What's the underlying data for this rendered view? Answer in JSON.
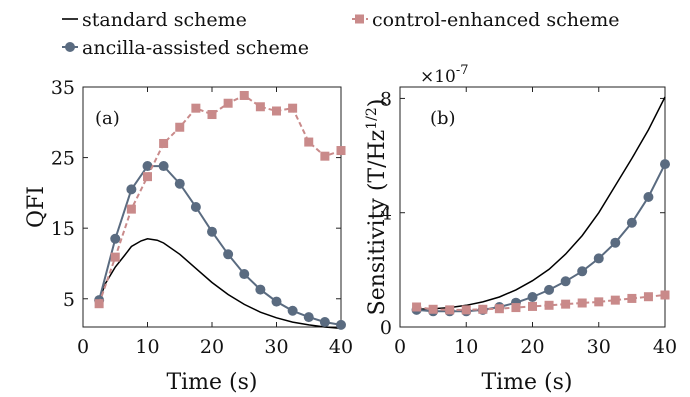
{
  "legend": {
    "standard": "standard scheme",
    "control": "control-enhanced scheme",
    "ancilla": "ancilla-assisted scheme"
  },
  "colors": {
    "standard": "#000000",
    "ancilla": "#5a6b80",
    "control": "#c98a8a"
  },
  "chart_data": [
    {
      "type": "line",
      "panel_label": "(a)",
      "xlabel": "Time (s)",
      "ylabel": "QFI",
      "xlim": [
        0,
        40
      ],
      "ylim": [
        1,
        35
      ],
      "xticks": [
        0,
        10,
        20,
        30,
        40
      ],
      "yticks": [
        5,
        15,
        25,
        35
      ],
      "grid": false,
      "series": [
        {
          "name": "standard scheme",
          "style": "solid",
          "marker": "none",
          "x": [
            2.5,
            3.5,
            5,
            6.5,
            7.5,
            9,
            10,
            11.5,
            12.5,
            15,
            17.5,
            20,
            22.5,
            25,
            27.5,
            30,
            32.5,
            35,
            37.5,
            40
          ],
          "y": [
            4.8,
            7.2,
            9.5,
            11.2,
            12.4,
            13.2,
            13.5,
            13.3,
            12.9,
            11.3,
            9.3,
            7.3,
            5.6,
            4.2,
            3.1,
            2.3,
            1.7,
            1.3,
            1.0,
            0.8
          ]
        },
        {
          "name": "ancilla-assisted scheme",
          "style": "solid",
          "marker": "circle",
          "x": [
            2.5,
            5,
            7.5,
            10,
            12.5,
            15,
            17.5,
            20,
            22.5,
            25,
            27.5,
            30,
            32.5,
            35,
            37.5,
            40
          ],
          "y": [
            4.8,
            13.5,
            20.5,
            23.8,
            23.8,
            21.3,
            18.0,
            14.5,
            11.3,
            8.5,
            6.3,
            4.6,
            3.3,
            2.4,
            1.7,
            1.3
          ]
        },
        {
          "name": "control-enhanced scheme",
          "style": "dashed",
          "marker": "square",
          "x": [
            2.5,
            5,
            7.5,
            10,
            12.5,
            15,
            17.5,
            20,
            22.5,
            25,
            27.5,
            30,
            32.5,
            35,
            37.5,
            40
          ],
          "y": [
            4.3,
            10.9,
            17.7,
            22.3,
            27.0,
            29.3,
            32.0,
            31.1,
            32.7,
            33.8,
            32.2,
            31.6,
            32.0,
            27.2,
            25.2,
            26.0
          ]
        }
      ]
    },
    {
      "type": "line",
      "panel_label": "(b)",
      "xlabel": "Time (s)",
      "ylabel": "Sensitivity (T/Hz",
      "ylabel_exp": "1/2",
      "ylabel_close": ")",
      "exponent_base": "×10",
      "exponent_power": "-7",
      "xlim": [
        0,
        40
      ],
      "ylim": [
        0,
        8.4
      ],
      "xticks": [
        0,
        10,
        20,
        30,
        40
      ],
      "yticks": [
        0,
        4,
        8
      ],
      "grid": false,
      "series": [
        {
          "name": "standard scheme",
          "style": "solid",
          "marker": "none",
          "x": [
            2.5,
            5,
            7.5,
            10,
            12.5,
            15,
            17.5,
            20,
            22.5,
            25,
            27.5,
            30,
            32.5,
            35,
            37.5,
            40
          ],
          "y": [
            0.62,
            0.64,
            0.68,
            0.76,
            0.88,
            1.05,
            1.3,
            1.62,
            2.02,
            2.55,
            3.2,
            4.0,
            4.95,
            5.9,
            6.9,
            8.05
          ]
        },
        {
          "name": "ancilla-assisted scheme",
          "style": "solid",
          "marker": "circle",
          "x": [
            2.5,
            5,
            7.5,
            10,
            12.5,
            15,
            17.5,
            20,
            22.5,
            25,
            27.5,
            30,
            32.5,
            35,
            37.5,
            40
          ],
          "y": [
            0.6,
            0.55,
            0.55,
            0.55,
            0.6,
            0.7,
            0.85,
            1.05,
            1.3,
            1.6,
            1.95,
            2.4,
            2.95,
            3.65,
            4.55,
            5.7
          ]
        },
        {
          "name": "control-enhanced scheme",
          "style": "dashed",
          "marker": "square",
          "x": [
            2.5,
            5,
            7.5,
            10,
            12.5,
            15,
            17.5,
            20,
            22.5,
            25,
            27.5,
            30,
            32.5,
            35,
            37.5,
            40
          ],
          "y": [
            0.7,
            0.62,
            0.6,
            0.6,
            0.62,
            0.64,
            0.68,
            0.72,
            0.76,
            0.8,
            0.84,
            0.88,
            0.94,
            1.0,
            1.06,
            1.12
          ]
        }
      ]
    }
  ]
}
